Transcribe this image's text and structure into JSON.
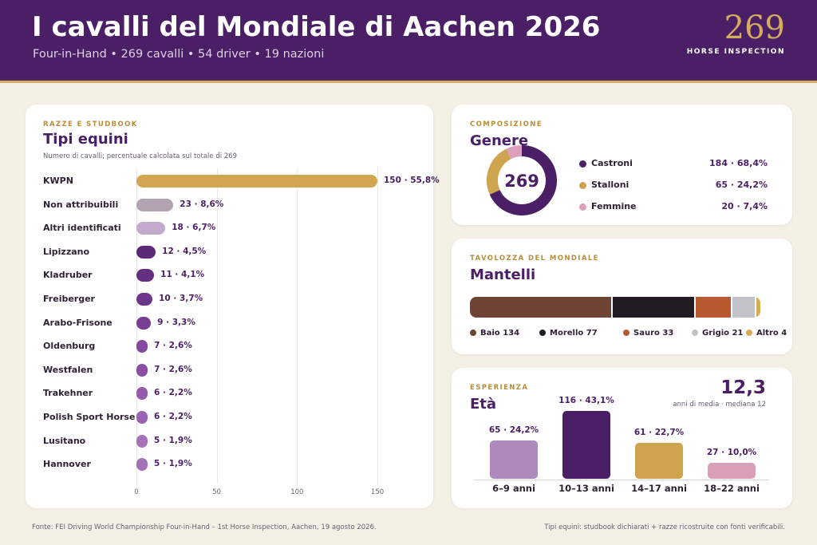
{
  "header": {
    "title": "I cavalli del Mondiale di Aachen 2026",
    "subtitle": "Four-in-Hand • 269 cavalli • 54 driver • 19 nazioni",
    "big_number": "269",
    "big_label": "HORSE INSPECTION"
  },
  "breeds": {
    "eyebrow": "RAZZE E STUDBOOK",
    "title": "Tipi equini",
    "note": "Numero di cavalli; percentuale calcolata sul totale di 269"
  },
  "gender": {
    "eyebrow": "COMPOSIZIONE",
    "title": "Genere",
    "center_total": "269"
  },
  "coats": {
    "eyebrow": "TAVOLOZZA DEL MONDIALE",
    "title": "Mantelli"
  },
  "ages": {
    "eyebrow": "ESPERIENZA",
    "title": "Età",
    "stat_value": "12,3",
    "stat_note": "anni di media · mediana 12"
  },
  "footer": {
    "source": "Fonte: FEI Driving World Championship Four-in-Hand – 1st Horse Inspection, Aachen, 19 agosto 2026.",
    "note": "Tipi equini: studbook dichiarati + razze ricostruite con fonti verificabili."
  },
  "chart_data": [
    {
      "type": "bar",
      "orientation": "horizontal",
      "title": "Tipi equini",
      "categories": [
        "KWPN",
        "Non attribuibili",
        "Altri identificati",
        "Lipizzano",
        "Kladruber",
        "Freiberger",
        "Arabo-Frisone",
        "Oldenburg",
        "Westfalen",
        "Trakehner",
        "Polish Sport Horse",
        "Lusitano",
        "Hannover"
      ],
      "values": [
        150,
        23,
        18,
        12,
        11,
        10,
        9,
        7,
        7,
        6,
        6,
        5,
        5
      ],
      "labels": [
        "150 · 55,8%",
        "23 · 8,6%",
        "18 · 6,7%",
        "12 · 4,5%",
        "11 · 4,1%",
        "10 · 3,7%",
        "9 · 3,3%",
        "7 · 2,6%",
        "7 · 2,6%",
        "6 · 2,2%",
        "6 · 2,2%",
        "5 · 1,9%",
        "5 · 1,9%"
      ],
      "colors": [
        "#d1a650",
        "#b2a3b3",
        "#c3a9cb",
        "#5c2877",
        "#652f82",
        "#6d368b",
        "#773e93",
        "#84489f",
        "#8a4ea4",
        "#955aab",
        "#9a62b0",
        "#a771b8",
        "#a771b8"
      ],
      "xticks": [
        0,
        50,
        100,
        150
      ],
      "xlim": [
        0,
        150
      ],
      "grid": true
    },
    {
      "type": "pie",
      "title": "Genere",
      "categories": [
        "Castroni",
        "Stalloni",
        "Femmine"
      ],
      "values": [
        184,
        65,
        20
      ],
      "labels": [
        "184 · 68,4%",
        "65 · 24,2%",
        "20 · 7,4%"
      ],
      "colors": [
        "#4a1f66",
        "#cfa44e",
        "#dca0bd"
      ]
    },
    {
      "type": "bar",
      "orientation": "stacked-horizontal",
      "title": "Mantelli",
      "categories": [
        "Baio",
        "Morello",
        "Sauro",
        "Grigio",
        "Altro"
      ],
      "values": [
        134,
        77,
        33,
        21,
        4
      ],
      "colors": [
        "#6e4534",
        "#211c24",
        "#b85a30",
        "#c2c2c8",
        "#d7ac56"
      ]
    },
    {
      "type": "bar",
      "title": "Età",
      "categories": [
        "6–9 anni",
        "10–13 anni",
        "14–17 anni",
        "18–22 anni"
      ],
      "values": [
        65,
        116,
        61,
        27
      ],
      "labels": [
        "65 · 24,2%",
        "116 · 43,1%",
        "61 · 22,7%",
        "27 · 10,0%"
      ],
      "colors": [
        "#ad88bc",
        "#4a1f66",
        "#cfa44e",
        "#dba0b9"
      ]
    }
  ]
}
